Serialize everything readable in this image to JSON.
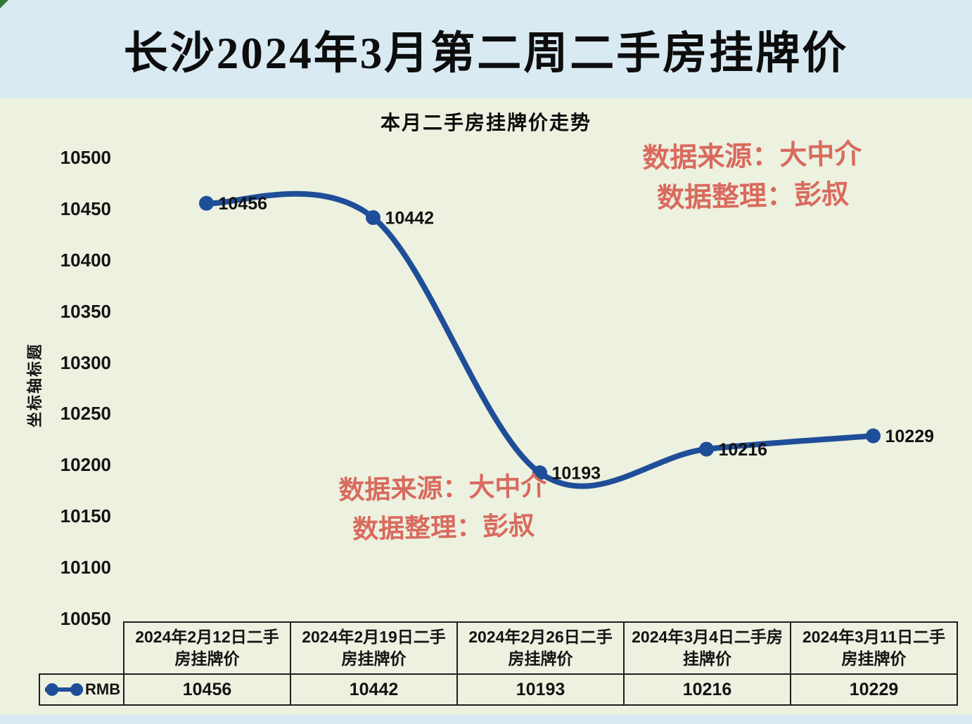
{
  "page_title": "长沙2024年3月第二周二手房挂牌价",
  "watermark": {
    "line1": "数据来源：大中介",
    "line2": "数据整理：彭叔"
  },
  "chart_data": {
    "type": "line",
    "title": "本月二手房挂牌价走势",
    "y_axis_title": "坐标轴标题",
    "categories": [
      "2024年2月12日二手房挂牌价",
      "2024年2月19日二手房挂牌价",
      "2024年2月26日二手房挂牌价",
      "2024年3月4日二手房挂牌价",
      "2024年3月11日二手房挂牌价"
    ],
    "series": [
      {
        "name": "RMB",
        "values": [
          10456,
          10442,
          10193,
          10216,
          10229
        ]
      }
    ],
    "y_ticks": [
      10500,
      10450,
      10400,
      10350,
      10300,
      10250,
      10200,
      10150,
      10100,
      10050
    ],
    "ylim": [
      10050,
      10500
    ],
    "grid": false,
    "smooth_line": true,
    "data_labels": true,
    "legend_position": "table-row-header"
  },
  "colors": {
    "title_bar_bg": "#d9eaf3",
    "chart_bg": "#edf1df",
    "line": "#1f4e99",
    "watermark": "#d96a5e",
    "table_border": "#1f1f1f",
    "text": "#141414",
    "corner_marker": "#2e7d32"
  }
}
